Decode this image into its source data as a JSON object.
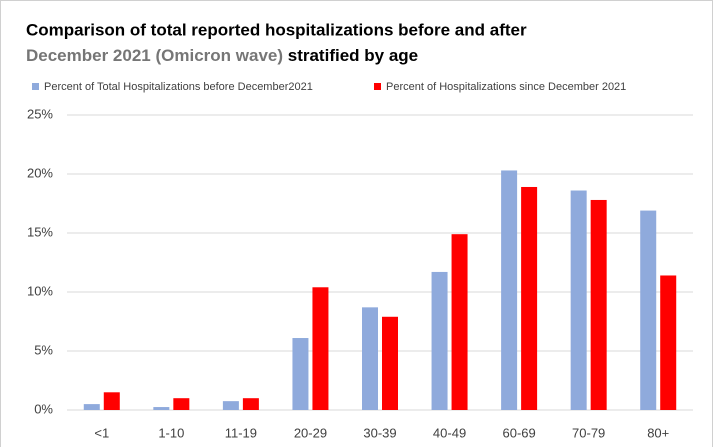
{
  "chart_data": {
    "type": "bar",
    "title": [
      "Comparison of total reported hospitalizations before and after",
      "December 2021 (Omicron wave)",
      "stratified by age"
    ],
    "categories": [
      "<1",
      "1-10",
      "11-19",
      "20-29",
      "30-39",
      "40-49",
      "60-69",
      "70-79",
      "80+"
    ],
    "series": [
      {
        "name": "Percent of Total Hospitalizations before December2021",
        "color": "#8faadc",
        "values": [
          0.5,
          0.25,
          0.75,
          6.1,
          8.7,
          11.7,
          20.3,
          18.6,
          16.9
        ]
      },
      {
        "name": "Percent of Hospitalizations since December 2021",
        "color": "#ff0000",
        "values": [
          1.5,
          1.0,
          1.0,
          10.4,
          7.9,
          14.9,
          18.9,
          17.8,
          11.4
        ]
      }
    ],
    "ylim": [
      0,
      25
    ],
    "yticks": [
      {
        "value": 0,
        "label": "0%"
      },
      {
        "value": 5,
        "label": "5%"
      },
      {
        "value": 10,
        "label": "10%"
      },
      {
        "value": 15,
        "label": "15%"
      },
      {
        "value": 20,
        "label": "20%"
      },
      {
        "value": 25,
        "label": "25%"
      }
    ],
    "grid": true
  }
}
